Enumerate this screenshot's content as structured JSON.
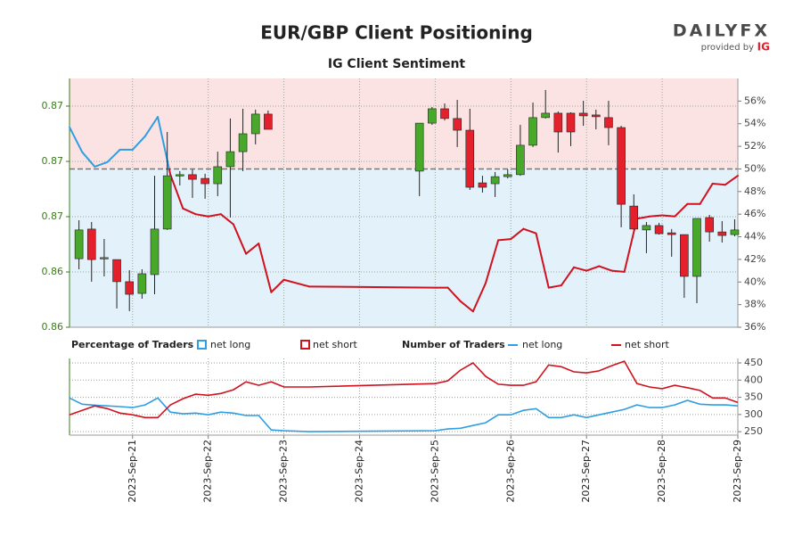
{
  "logo": {
    "name": "DAILYFX",
    "provided_by": "provided by",
    "brand": "IG"
  },
  "chart_data": [
    {
      "type": "candlestick",
      "title": "EUR/GBP Client Positioning",
      "subtitle": "IG Client Sentiment",
      "up_color": "#47a82a",
      "down_color": "#e3202c",
      "xlim": [
        4,
        216
      ],
      "x": [
        7,
        11,
        15,
        19,
        23,
        27,
        31,
        35,
        39,
        43,
        47,
        51,
        55,
        59,
        63,
        67,
        115,
        119,
        123,
        127,
        131,
        135,
        139,
        143,
        147,
        151,
        155,
        159,
        163,
        167,
        171,
        175,
        179,
        183,
        187,
        191,
        195,
        199,
        203,
        207,
        211,
        215
      ],
      "open": [
        0.8656,
        0.86694,
        0.8656,
        0.86556,
        0.86456,
        0.86403,
        0.86488,
        0.86694,
        0.86935,
        0.8694,
        0.86923,
        0.86899,
        0.86976,
        0.87044,
        0.87125,
        0.87214,
        0.86956,
        0.87173,
        0.87238,
        0.87194,
        0.87141,
        0.86903,
        0.86899,
        0.86931,
        0.8694,
        0.87073,
        0.87198,
        0.87218,
        0.87218,
        0.87218,
        0.8721,
        0.87198,
        0.87153,
        0.86798,
        0.8669,
        0.8671,
        0.86677,
        0.86669,
        0.8648,
        0.86746,
        0.86681,
        0.86669
      ],
      "high": [
        0.86734,
        0.86726,
        0.86649,
        0.86556,
        0.86508,
        0.86512,
        0.86935,
        0.87133,
        0.86956,
        0.86964,
        0.86944,
        0.87044,
        0.87194,
        0.87238,
        0.87234,
        0.8723,
        0.87173,
        0.87246,
        0.87262,
        0.87278,
        0.87238,
        0.86935,
        0.86952,
        0.86964,
        0.87165,
        0.87266,
        0.87323,
        0.87226,
        0.87222,
        0.87274,
        0.87234,
        0.87274,
        0.87161,
        0.86851,
        0.86726,
        0.86722,
        0.86694,
        0.86669,
        0.86742,
        0.86758,
        0.8673,
        0.86738
      ],
      "low": [
        0.86512,
        0.86456,
        0.8648,
        0.86335,
        0.86323,
        0.86379,
        0.86399,
        0.8669,
        0.86891,
        0.86835,
        0.86831,
        0.86843,
        0.86746,
        0.86956,
        0.87077,
        0.87145,
        0.86843,
        0.87165,
        0.87185,
        0.87065,
        0.86871,
        0.86859,
        0.86839,
        0.86923,
        0.86935,
        0.87065,
        0.87194,
        0.8704,
        0.87069,
        0.87161,
        0.87145,
        0.87073,
        0.86702,
        0.8669,
        0.86585,
        0.86669,
        0.86569,
        0.86383,
        0.86359,
        0.86637,
        0.86633,
        0.86661
      ],
      "close": [
        0.8669,
        0.86556,
        0.86565,
        0.86456,
        0.86399,
        0.86492,
        0.86694,
        0.86935,
        0.8694,
        0.86919,
        0.86899,
        0.86976,
        0.87044,
        0.87125,
        0.87214,
        0.87145,
        0.87173,
        0.87238,
        0.87194,
        0.87141,
        0.86883,
        0.86883,
        0.86931,
        0.8694,
        0.87073,
        0.87198,
        0.87218,
        0.87133,
        0.87133,
        0.87206,
        0.87202,
        0.87153,
        0.86806,
        0.86694,
        0.8671,
        0.86673,
        0.86669,
        0.8648,
        0.86742,
        0.86681,
        0.86665,
        0.8669
      ],
      "ylim": [
        0.8625,
        0.87375
      ],
      "yticks": [
        {
          "value": 0.8625,
          "label": "0.86"
        },
        {
          "value": 0.865,
          "label": "0.86"
        },
        {
          "value": 0.8675,
          "label": "0.87"
        },
        {
          "value": 0.87,
          "label": "0.87"
        },
        {
          "value": 0.8725,
          "label": "0.87"
        }
      ],
      "y2lim": [
        36,
        58
      ],
      "y2ticks": [
        {
          "value": 36,
          "label": "36%"
        },
        {
          "value": 38,
          "label": "38%"
        },
        {
          "value": 40,
          "label": "40%"
        },
        {
          "value": 42,
          "label": "42%"
        },
        {
          "value": 44,
          "label": "44%"
        },
        {
          "value": 46,
          "label": "46%"
        },
        {
          "value": 48,
          "label": "48%"
        },
        {
          "value": 50,
          "label": "50%"
        },
        {
          "value": 52,
          "label": "52%"
        },
        {
          "value": 54,
          "label": "54%"
        },
        {
          "value": 56,
          "label": "56%"
        }
      ],
      "sentiment": {
        "axis": "y2",
        "split": 50,
        "x": [
          4,
          8,
          12,
          16,
          20,
          24,
          28,
          32,
          36,
          40,
          44,
          48,
          52,
          56,
          60,
          64,
          68,
          72,
          80,
          120,
          124,
          128,
          132,
          136,
          140,
          144,
          148,
          152,
          156,
          160,
          164,
          168,
          172,
          176,
          180,
          184,
          188,
          192,
          196,
          200,
          204,
          208,
          212,
          216
        ],
        "values": [
          53.7,
          51.5,
          50.2,
          50.6,
          51.7,
          51.7,
          52.9,
          54.6,
          49.5,
          46.5,
          46.0,
          45.8,
          46.0,
          45.1,
          42.5,
          43.4,
          39.1,
          40.2,
          39.6,
          39.5,
          39.5,
          38.3,
          37.4,
          39.9,
          43.7,
          43.8,
          44.7,
          44.3,
          39.5,
          39.7,
          41.3,
          41.0,
          41.4,
          41.0,
          40.9,
          45.6,
          45.8,
          45.9,
          45.8,
          46.9,
          46.9,
          48.7,
          48.6,
          49.4
        ]
      },
      "legend": {
        "title": "Percentage of Traders",
        "entries": [
          {
            "name": "net long",
            "color": "#2f9ee3",
            "shade": "#e3f1fa"
          },
          {
            "name": "net short",
            "color": "#d0121f",
            "shade": "#fbe3e3"
          }
        ]
      },
      "grid": true
    },
    {
      "type": "line",
      "legend": {
        "title": "Number of Traders"
      },
      "xlim": [
        4,
        216
      ],
      "xticks": [
        {
          "value": 24,
          "label": "2023-Sep-21"
        },
        {
          "value": 48,
          "label": "2023-Sep-22"
        },
        {
          "value": 72,
          "label": "2023-Sep-23"
        },
        {
          "value": 96,
          "label": "2023-Sep-24"
        },
        {
          "value": 120,
          "label": "2023-Sep-25"
        },
        {
          "value": 144,
          "label": "2023-Sep-26"
        },
        {
          "value": 168,
          "label": "2023-Sep-27"
        },
        {
          "value": 192,
          "label": "2023-Sep-28"
        },
        {
          "value": 216,
          "label": "2023-Sep-29"
        }
      ],
      "x": [
        4,
        8,
        12,
        16,
        20,
        24,
        28,
        32,
        36,
        40,
        44,
        48,
        52,
        56,
        60,
        64,
        68,
        72,
        80,
        120,
        124,
        128,
        132,
        136,
        140,
        144,
        148,
        152,
        156,
        160,
        164,
        168,
        172,
        176,
        180,
        184,
        188,
        192,
        196,
        200,
        204,
        208,
        212,
        216
      ],
      "series": [
        {
          "name": "net long",
          "color": "#2f9ee3",
          "values": [
            348,
            330,
            327,
            325,
            323,
            320,
            328,
            348,
            307,
            302,
            304,
            299,
            307,
            304,
            297,
            297,
            255,
            253,
            250,
            253,
            258,
            260,
            268,
            276,
            299,
            299,
            312,
            317,
            291,
            291,
            299,
            291,
            299,
            307,
            315,
            328,
            320,
            320,
            328,
            341,
            330,
            328,
            328,
            325
          ]
        },
        {
          "name": "net short",
          "color": "#d0121f",
          "values": [
            299,
            312,
            325,
            317,
            304,
            299,
            291,
            291,
            328,
            346,
            359,
            356,
            361,
            372,
            395,
            385,
            395,
            380,
            380,
            390,
            398,
            429,
            450,
            411,
            388,
            385,
            385,
            395,
            444,
            439,
            424,
            421,
            427,
            442,
            455,
            390,
            380,
            375,
            385,
            378,
            370,
            348,
            348,
            335
          ]
        }
      ],
      "ylim": [
        240,
        463
      ],
      "yticks": [
        250,
        300,
        350,
        400,
        450
      ],
      "grid": true
    }
  ]
}
